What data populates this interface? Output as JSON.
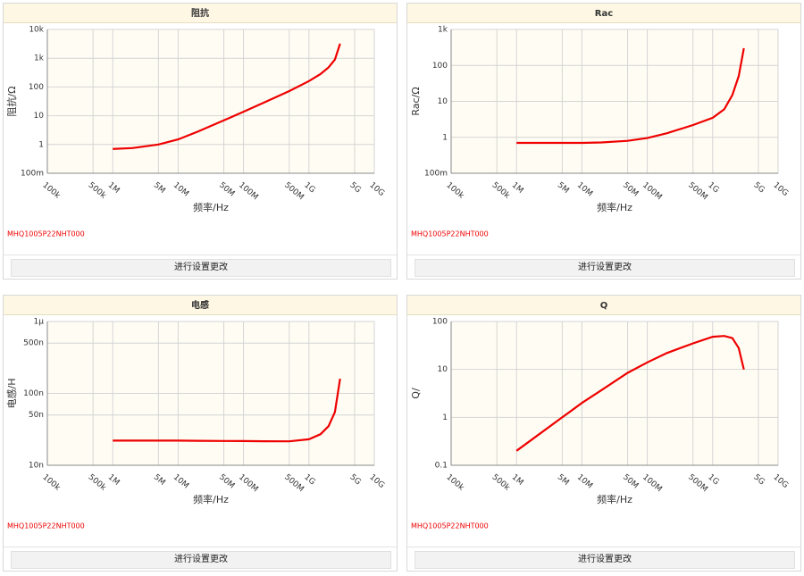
{
  "chart_data": [
    {
      "type": "line",
      "title": "阻抗",
      "x_label": "频率/Hz",
      "y_label": "阻抗/Ω",
      "xscale": "log",
      "yscale": "log",
      "grid": true,
      "xlim": [
        100000,
        10000000000
      ],
      "xticks": [
        {
          "value": 100000,
          "label": "100k"
        },
        {
          "value": 500000,
          "label": "500k"
        },
        {
          "value": 1000000,
          "label": "1M"
        },
        {
          "value": 5000000,
          "label": "5M"
        },
        {
          "value": 10000000,
          "label": "10M"
        },
        {
          "value": 50000000,
          "label": "50M"
        },
        {
          "value": 100000000,
          "label": "100M"
        },
        {
          "value": 500000000,
          "label": "500M"
        },
        {
          "value": 1000000000,
          "label": "1G"
        },
        {
          "value": 5000000000,
          "label": "5G"
        },
        {
          "value": 10000000000,
          "label": "10G"
        }
      ],
      "ylim": [
        0.1,
        10000
      ],
      "yticks": [
        {
          "value": 10000,
          "label": "10k"
        },
        {
          "value": 1000,
          "label": "1k"
        },
        100,
        10,
        1,
        {
          "value": 0.1,
          "label": "100m"
        }
      ],
      "x": [
        1000000,
        2000000,
        5000000,
        10000000,
        20000000,
        50000000,
        100000000,
        200000000,
        500000000,
        1000000000,
        1500000000,
        2000000000,
        2500000000,
        3000000000
      ],
      "series": [
        {
          "name": "MHQ1005P22NHT000",
          "color": "#ee0000",
          "values": [
            0.7,
            0.75,
            1.0,
            1.5,
            2.8,
            6.9,
            13.8,
            28,
            72,
            160,
            280,
            480,
            900,
            3200
          ]
        }
      ]
    },
    {
      "type": "line",
      "title": "Rac",
      "x_label": "频率/Hz",
      "y_label": "Rac/Ω",
      "xscale": "log",
      "yscale": "log",
      "grid": true,
      "xlim": [
        100000,
        10000000000
      ],
      "xticks": [
        {
          "value": 100000,
          "label": "100k"
        },
        {
          "value": 500000,
          "label": "500k"
        },
        {
          "value": 1000000,
          "label": "1M"
        },
        {
          "value": 5000000,
          "label": "5M"
        },
        {
          "value": 10000000,
          "label": "10M"
        },
        {
          "value": 50000000,
          "label": "50M"
        },
        {
          "value": 100000000,
          "label": "100M"
        },
        {
          "value": 500000000,
          "label": "500M"
        },
        {
          "value": 1000000000,
          "label": "1G"
        },
        {
          "value": 5000000000,
          "label": "5G"
        },
        {
          "value": 10000000000,
          "label": "10G"
        }
      ],
      "ylim": [
        0.1,
        1000
      ],
      "yticks": [
        {
          "value": 1000,
          "label": "1k"
        },
        100,
        10,
        1,
        {
          "value": 0.1,
          "label": "100m"
        }
      ],
      "x": [
        1000000,
        2000000,
        5000000,
        10000000,
        20000000,
        50000000,
        100000000,
        200000000,
        500000000,
        1000000000,
        1500000000,
        2000000000,
        2500000000,
        3000000000
      ],
      "series": [
        {
          "name": "MHQ1005P22NHT000",
          "color": "#ee0000",
          "values": [
            0.7,
            0.7,
            0.7,
            0.7,
            0.72,
            0.8,
            0.95,
            1.3,
            2.2,
            3.5,
            6,
            15,
            50,
            300
          ]
        }
      ]
    },
    {
      "type": "line",
      "title": "电感",
      "x_label": "频率/Hz",
      "y_label": "电感/H",
      "xscale": "log",
      "yscale": "log",
      "grid": true,
      "xlim": [
        100000,
        10000000000
      ],
      "xticks": [
        {
          "value": 100000,
          "label": "100k"
        },
        {
          "value": 500000,
          "label": "500k"
        },
        {
          "value": 1000000,
          "label": "1M"
        },
        {
          "value": 5000000,
          "label": "5M"
        },
        {
          "value": 10000000,
          "label": "10M"
        },
        {
          "value": 50000000,
          "label": "50M"
        },
        {
          "value": 100000000,
          "label": "100M"
        },
        {
          "value": 500000000,
          "label": "500M"
        },
        {
          "value": 1000000000,
          "label": "1G"
        },
        {
          "value": 5000000000,
          "label": "5G"
        },
        {
          "value": 10000000000,
          "label": "10G"
        }
      ],
      "ylim": [
        1e-08,
        1e-06
      ],
      "yticks": [
        {
          "value": 1e-06,
          "label": "1μ"
        },
        {
          "value": 5e-07,
          "label": "500n"
        },
        {
          "value": 1e-07,
          "label": "100n"
        },
        {
          "value": 5e-08,
          "label": "50n"
        },
        {
          "value": 1e-08,
          "label": "10n"
        }
      ],
      "x": [
        1000000,
        2000000,
        5000000,
        10000000,
        20000000,
        50000000,
        100000000,
        200000000,
        500000000,
        1000000000,
        1500000000,
        2000000000,
        2500000000,
        3000000000
      ],
      "series": [
        {
          "name": "MHQ1005P22NHT000",
          "color": "#ee0000",
          "values": [
            2.2e-08,
            2.2e-08,
            2.2e-08,
            2.2e-08,
            2.19e-08,
            2.18e-08,
            2.17e-08,
            2.16e-08,
            2.15e-08,
            2.3e-08,
            2.7e-08,
            3.5e-08,
            5.5e-08,
            1.6e-07
          ]
        }
      ]
    },
    {
      "type": "line",
      "title": "Q",
      "x_label": "频率/Hz",
      "y_label": "Q/",
      "xscale": "log",
      "yscale": "log",
      "grid": true,
      "xlim": [
        100000,
        10000000000
      ],
      "xticks": [
        {
          "value": 100000,
          "label": "100k"
        },
        {
          "value": 500000,
          "label": "500k"
        },
        {
          "value": 1000000,
          "label": "1M"
        },
        {
          "value": 5000000,
          "label": "5M"
        },
        {
          "value": 10000000,
          "label": "10M"
        },
        {
          "value": 50000000,
          "label": "50M"
        },
        {
          "value": 100000000,
          "label": "100M"
        },
        {
          "value": 500000000,
          "label": "500M"
        },
        {
          "value": 1000000000,
          "label": "1G"
        },
        {
          "value": 5000000000,
          "label": "5G"
        },
        {
          "value": 10000000000,
          "label": "10G"
        }
      ],
      "ylim": [
        0.1,
        100
      ],
      "yticks": [
        100,
        10,
        1,
        0.1
      ],
      "x": [
        1000000,
        2000000,
        5000000,
        10000000,
        20000000,
        50000000,
        100000000,
        200000000,
        500000000,
        1000000000,
        1500000000,
        2000000000,
        2500000000,
        3000000000
      ],
      "series": [
        {
          "name": "MHQ1005P22NHT000",
          "color": "#ee0000",
          "values": [
            0.2,
            0.4,
            1.0,
            2,
            3.7,
            8.5,
            14,
            22,
            35,
            48,
            50,
            45,
            28,
            10
          ]
        }
      ]
    }
  ],
  "buttons": [
    "进行设置更改",
    "进行设置更改",
    "进行设置更改",
    "进行设置更改"
  ]
}
